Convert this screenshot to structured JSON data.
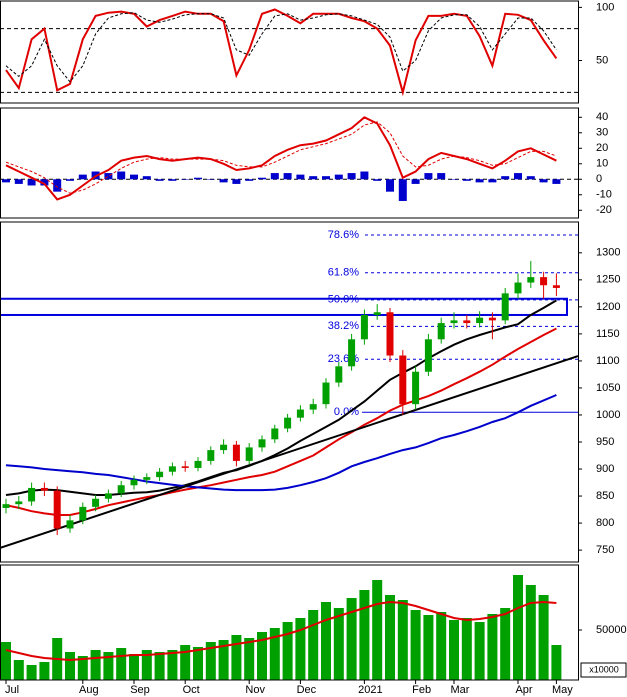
{
  "chart_data": [
    {
      "type": "line",
      "ylim": [
        10,
        106
      ],
      "yticks": [
        50,
        100
      ],
      "levels": [
        80,
        20
      ],
      "series": [
        {
          "color": "#e00000",
          "dash": false,
          "values": [
            41,
            24,
            70,
            80,
            22,
            28,
            70,
            92,
            95,
            96,
            94,
            82,
            88,
            92,
            96,
            94,
            94,
            87,
            36,
            60,
            94,
            98,
            92,
            85,
            94,
            94,
            94,
            90,
            87,
            80,
            64,
            20,
            69,
            92,
            92,
            94,
            92,
            73,
            45,
            94,
            93,
            88,
            69,
            52
          ]
        },
        {
          "color": "#000000",
          "dash": true,
          "values": [
            45,
            35,
            45,
            70,
            45,
            30,
            45,
            75,
            90,
            94,
            95,
            88,
            86,
            89,
            93,
            94,
            94,
            90,
            60,
            55,
            75,
            92,
            94,
            88,
            90,
            93,
            94,
            92,
            88,
            84,
            72,
            40,
            50,
            78,
            90,
            93,
            93,
            82,
            60,
            75,
            90,
            90,
            78,
            60
          ]
        }
      ]
    },
    {
      "type": "macd",
      "ylim": [
        -25,
        46
      ],
      "yticks": [
        -20,
        -10,
        0,
        10,
        20,
        30,
        40
      ],
      "zero": 0,
      "histogram": {
        "color": "#0000cc",
        "values": [
          -2,
          -3,
          -4,
          -4,
          -8,
          -1,
          3,
          5,
          4,
          5,
          3,
          2,
          -1,
          -1,
          0,
          1,
          0,
          -2,
          -3,
          -1,
          1,
          4,
          4,
          3,
          2,
          2,
          3,
          4,
          5,
          -1,
          -8,
          -14,
          -3,
          4,
          4,
          0,
          -1,
          -2,
          -2,
          2,
          4,
          2,
          -2,
          -3
        ]
      },
      "series": [
        {
          "color": "#e00000",
          "dash": false,
          "values": [
            9,
            5,
            1,
            -3,
            -13,
            -10,
            -4,
            2,
            6,
            12,
            14,
            15,
            13,
            12,
            13,
            14,
            13,
            10,
            6,
            7,
            9,
            15,
            19,
            22,
            23,
            25,
            29,
            33,
            40,
            36,
            22,
            1,
            5,
            13,
            17,
            15,
            13,
            10,
            7,
            12,
            18,
            20,
            16,
            12
          ]
        },
        {
          "color": "#e00000",
          "dash": true,
          "values": [
            11,
            8,
            5,
            1,
            -5,
            -9,
            -7,
            -3,
            2,
            7,
            11,
            13,
            14,
            13,
            13,
            13,
            13,
            12,
            9,
            8,
            8,
            11,
            15,
            19,
            21,
            23,
            26,
            29,
            35,
            37,
            30,
            15,
            8,
            9,
            13,
            15,
            14,
            12,
            9,
            10,
            14,
            18,
            18,
            15
          ]
        }
      ]
    },
    {
      "type": "candlestick",
      "ylim": [
        728,
        1357
      ],
      "yticks": [
        750,
        800,
        850,
        900,
        950,
        1000,
        1050,
        1100,
        1150,
        1200,
        1250,
        1300
      ],
      "up_color": "#00a000",
      "down_color": "#e00000",
      "open": [
        828,
        835,
        840,
        865,
        860,
        790,
        805,
        830,
        845,
        855,
        870,
        880,
        885,
        895,
        905,
        902,
        915,
        935,
        945,
        915,
        940,
        955,
        975,
        995,
        1010,
        1020,
        1060,
        1090,
        1140,
        1185,
        1190,
        1110,
        1020,
        1080,
        1140,
        1170,
        1175,
        1170,
        1180,
        1175,
        1225,
        1245,
        1255,
        1240
      ],
      "high": [
        845,
        850,
        875,
        875,
        868,
        815,
        838,
        852,
        862,
        878,
        888,
        892,
        902,
        912,
        915,
        922,
        942,
        955,
        952,
        948,
        962,
        982,
        1002,
        1018,
        1030,
        1068,
        1098,
        1150,
        1195,
        1205,
        1198,
        1120,
        1090,
        1150,
        1180,
        1190,
        1185,
        1192,
        1190,
        1235,
        1262,
        1285,
        1265,
        1262
      ],
      "low": [
        818,
        826,
        832,
        850,
        778,
        782,
        798,
        822,
        838,
        848,
        862,
        872,
        878,
        888,
        895,
        896,
        908,
        928,
        905,
        908,
        932,
        948,
        968,
        988,
        1002,
        1012,
        1052,
        1082,
        1130,
        1176,
        1098,
        1000,
        1010,
        1072,
        1132,
        1160,
        1160,
        1162,
        1140,
        1168,
        1215,
        1235,
        1215,
        1220
      ],
      "close": [
        835,
        840,
        865,
        860,
        790,
        805,
        830,
        845,
        855,
        870,
        880,
        885,
        895,
        905,
        902,
        915,
        935,
        945,
        915,
        940,
        955,
        975,
        995,
        1010,
        1020,
        1060,
        1090,
        1140,
        1185,
        1190,
        1110,
        1020,
        1080,
        1140,
        1170,
        1175,
        1170,
        1180,
        1175,
        1225,
        1245,
        1255,
        1240,
        1235
      ],
      "series": [
        {
          "color": "#000000",
          "values": [
            852,
            855,
            860,
            862,
            861,
            858,
            855,
            852,
            852,
            854,
            856,
            857,
            860,
            865,
            870,
            877,
            885,
            893,
            898,
            906,
            915,
            926,
            938,
            952,
            965,
            978,
            991,
            1008,
            1025,
            1045,
            1065,
            1078,
            1090,
            1105,
            1118,
            1130,
            1140,
            1148,
            1155,
            1162,
            1168,
            1185,
            1198,
            1212
          ]
        },
        {
          "color": "#e00000",
          "values": [
            833,
            828,
            822,
            818,
            815,
            815,
            820,
            826,
            833,
            838,
            843,
            848,
            852,
            857,
            862,
            866,
            870,
            875,
            880,
            885,
            889,
            895,
            905,
            915,
            925,
            940,
            955,
            968,
            982,
            994,
            1008,
            1019,
            1027,
            1035,
            1045,
            1057,
            1068,
            1080,
            1093,
            1108,
            1122,
            1135,
            1148,
            1160
          ]
        },
        {
          "color": "#0000cc",
          "values": [
            907,
            905,
            903,
            900,
            898,
            896,
            894,
            891,
            889,
            885,
            881,
            877,
            874,
            871,
            868,
            866,
            864,
            862,
            861,
            861,
            861,
            862,
            865,
            870,
            876,
            883,
            893,
            905,
            913,
            920,
            928,
            935,
            940,
            948,
            957,
            963,
            970,
            978,
            987,
            994,
            1005,
            1017,
            1027,
            1037
          ]
        }
      ],
      "trendline": {
        "color": "#000000",
        "values": [
          754,
          1109
        ]
      },
      "box": {
        "color": "#0000dd",
        "low": 1185,
        "high": 1215
      },
      "fib_color": "#0000dd",
      "fib": [
        {
          "value": 1333,
          "label": "78.6%"
        },
        {
          "value": 1263,
          "label": "61.8%"
        },
        {
          "value": 1213,
          "label": "50.0%"
        },
        {
          "value": 1164,
          "label": "38.2%"
        },
        {
          "value": 1103,
          "label": "23.6%"
        },
        {
          "value": 1005,
          "label": "0.0%"
        }
      ]
    },
    {
      "type": "bar",
      "ylim": [
        0,
        115000
      ],
      "yticks": [
        50000
      ],
      "unit": "x10000",
      "color": "#00a000",
      "values": [
        38000,
        20000,
        15000,
        18000,
        42000,
        28000,
        24000,
        30000,
        28000,
        32000,
        26000,
        30000,
        28000,
        30000,
        35000,
        33000,
        38000,
        40000,
        45000,
        42000,
        48000,
        52000,
        58000,
        62000,
        70000,
        78000,
        72000,
        82000,
        90000,
        100000,
        85000,
        80000,
        70000,
        65000,
        68000,
        60000,
        62000,
        58000,
        66000,
        72000,
        105000,
        95000,
        85000,
        35000
      ],
      "average": {
        "color": "#e00000",
        "values": [
          30000,
          27000,
          24000,
          22000,
          21000,
          20000,
          21000,
          22000,
          23000,
          24000,
          25000,
          25000,
          26000,
          27000,
          28000,
          30000,
          32000,
          34000,
          36000,
          38000,
          40000,
          43000,
          46000,
          50000,
          55000,
          60000,
          64000,
          68000,
          72000,
          76000,
          78000,
          77000,
          74000,
          70000,
          66000,
          62000,
          60000,
          61000,
          63000,
          66000,
          72000,
          77000,
          78000,
          77000
        ]
      },
      "categories": [
        "Jul",
        null,
        null,
        null,
        null,
        null,
        "Aug",
        null,
        null,
        null,
        "Sep",
        null,
        null,
        null,
        "Oct",
        null,
        null,
        null,
        null,
        "Nov",
        null,
        null,
        null,
        "Dec",
        null,
        null,
        null,
        null,
        "2021",
        null,
        null,
        null,
        "Feb",
        null,
        null,
        "Mar",
        null,
        null,
        null,
        null,
        "Apr",
        null,
        null,
        "May"
      ]
    }
  ]
}
